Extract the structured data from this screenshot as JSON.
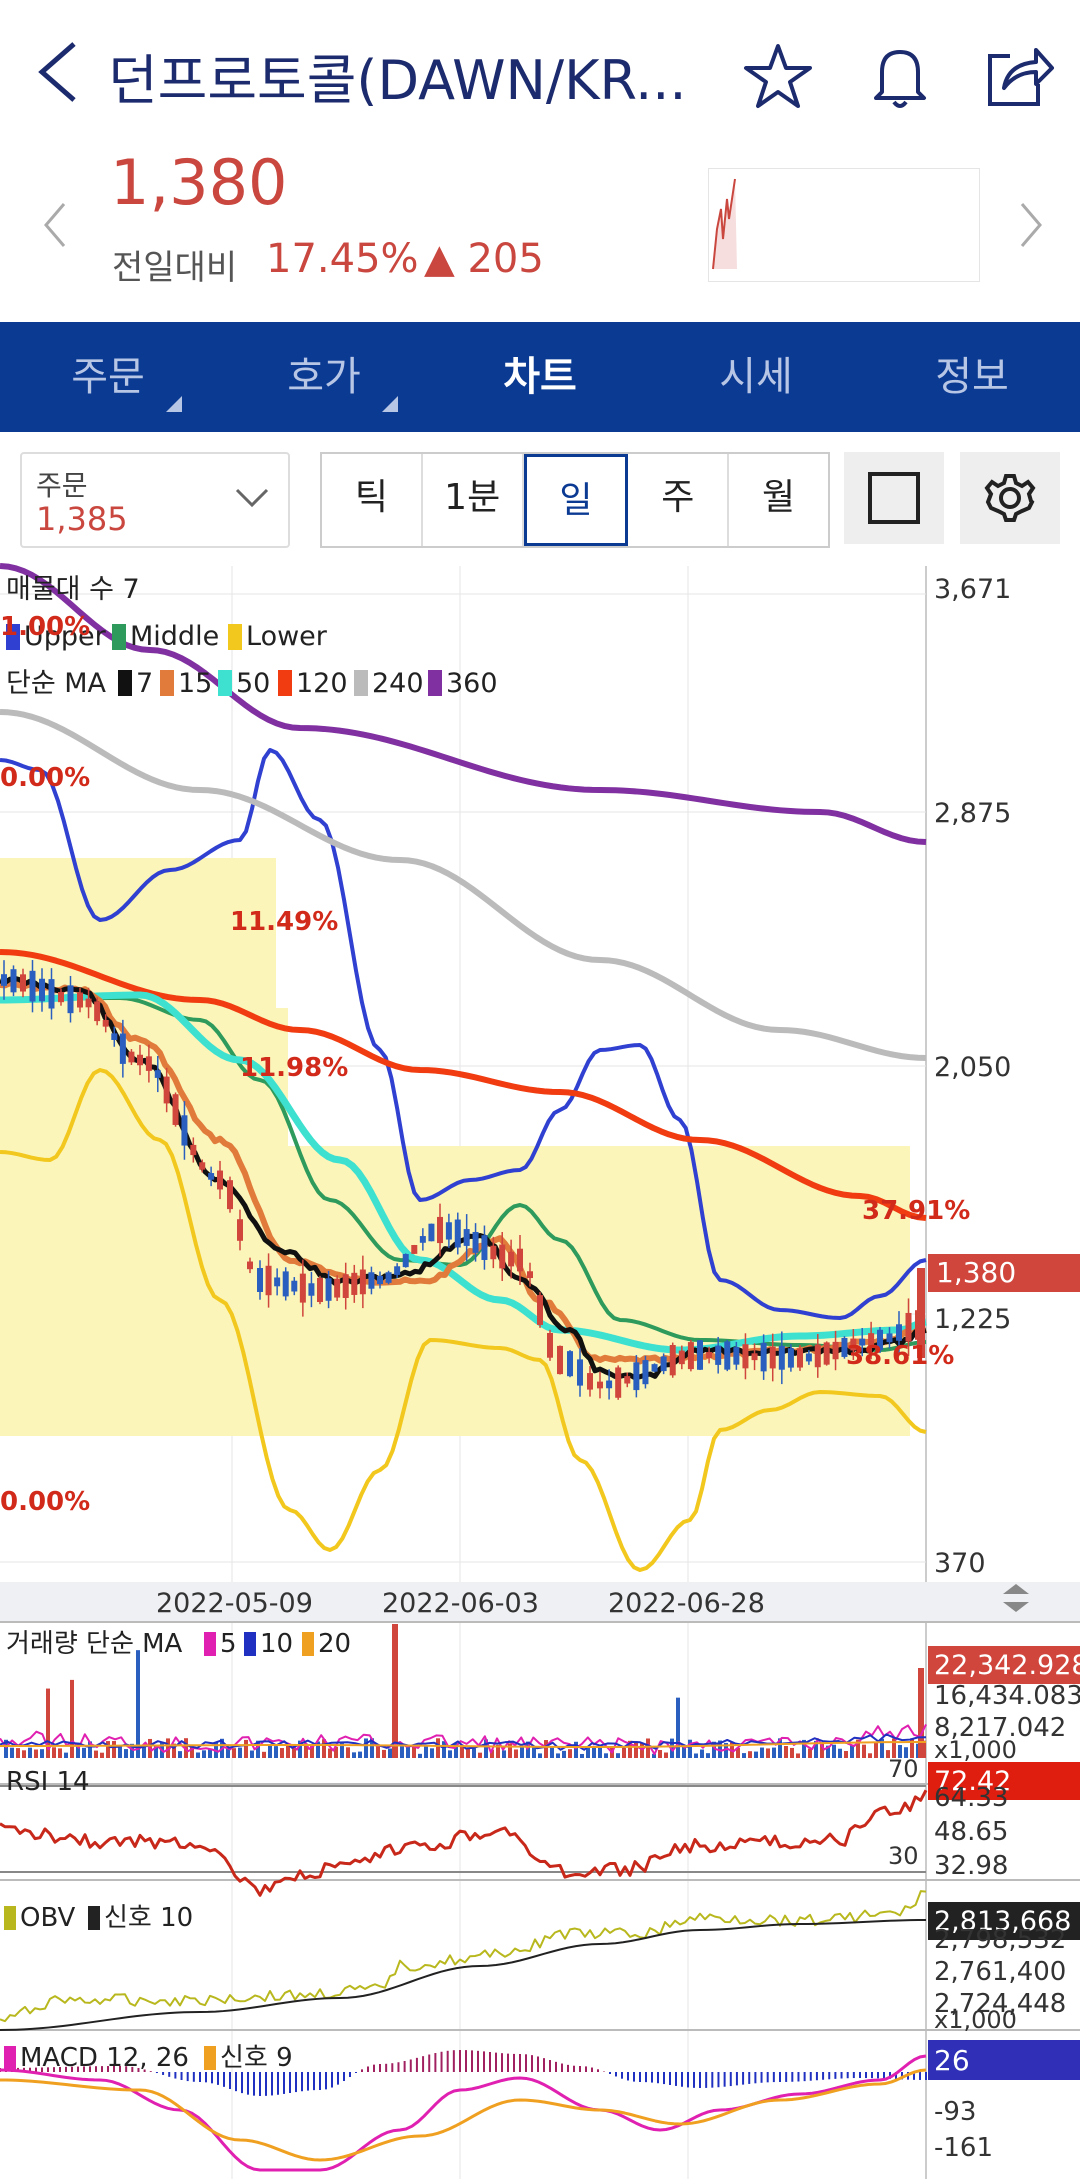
{
  "header": {
    "title": "던프로토콜(DAWN/KR...",
    "back_icon": "chevron-left-icon",
    "icons": [
      "star-icon",
      "bell-icon",
      "share-icon"
    ]
  },
  "quote": {
    "price": "1,380",
    "compare_label": "전일대비",
    "change_pct": "17.45%",
    "change_arrow": "▲",
    "change_value": "205",
    "up_color": "#c9473f"
  },
  "tabs": [
    {
      "label": "주문",
      "has_menu": true
    },
    {
      "label": "호가",
      "has_menu": true
    },
    {
      "label": "차트",
      "active": true
    },
    {
      "label": "시세"
    },
    {
      "label": "정보"
    }
  ],
  "toolbar": {
    "order_label": "주문",
    "order_value": "1,385",
    "periods": [
      "틱",
      "1분",
      "일",
      "주",
      "월"
    ],
    "selected_period": "일"
  },
  "main_chart": {
    "volume_profile_label": "매물대 수 7",
    "bollinger_legend": [
      "Upper",
      "Middle",
      "Lower"
    ],
    "ma_legend_prefix": "단순 MA",
    "ma_periods": [
      "7",
      "15",
      "50",
      "120",
      "240",
      "360"
    ],
    "ma_colors": [
      "#111111",
      "#e07b3c",
      "#3ee0d0",
      "#f03c10",
      "#bbbbbb",
      "#8030a0"
    ],
    "fib_labels": [
      "1.00%",
      "0.00%",
      "11.49%",
      "11.98%",
      "37.91%",
      "38.61%",
      "0.00%"
    ],
    "y_ticks": [
      "3,671",
      "2,875",
      "2,050",
      "1,225",
      "370"
    ],
    "current_price_tag": "1,380",
    "dates": [
      "2022-05-09",
      "2022-06-03",
      "2022-06-28"
    ]
  },
  "volume_panel": {
    "label": "거래량 단순 MA",
    "ma_periods": [
      "5",
      "10",
      "20"
    ],
    "ma_colors": [
      "#e020b0",
      "#2030c0",
      "#f0a020"
    ],
    "current_tag": "22,342.928",
    "ticks": [
      "16,434.083",
      "8,217.042",
      "x1,000"
    ]
  },
  "rsi_panel": {
    "label": "RSI 14",
    "current_tag": "72.42",
    "ticks": [
      "64.33",
      "48.65",
      "32.98"
    ],
    "levels": [
      "70",
      "30"
    ]
  },
  "obv_panel": {
    "label": "OBV",
    "signal_label": "신호 10",
    "current_tag": "2,813,668",
    "ticks": [
      "2,798,532",
      "2,761,400",
      "2,724,448",
      "x1,000"
    ]
  },
  "macd_panel": {
    "label": "MACD 12, 26",
    "signal_label": "신호 9",
    "current_tag": "26",
    "ticks": [
      "-93",
      "-161"
    ]
  }
}
